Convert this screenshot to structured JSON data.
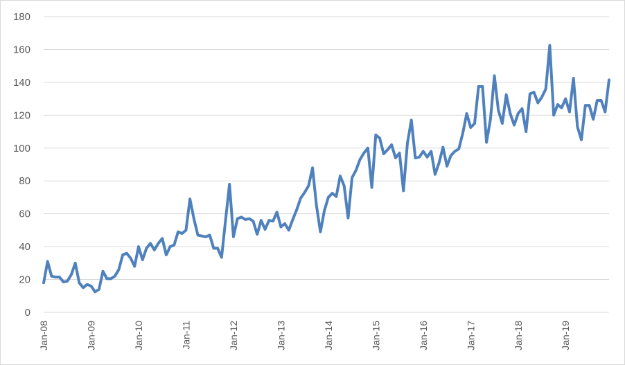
{
  "chart_data": {
    "type": "line",
    "title": "",
    "xlabel": "",
    "ylabel": "",
    "ylim": [
      0,
      180
    ],
    "y_ticks": [
      0,
      20,
      40,
      60,
      80,
      100,
      120,
      140,
      160,
      180
    ],
    "x_tick_labels": [
      "Jan-08",
      "Jan-09",
      "Jan-10",
      "Jan-11",
      "Jan-12",
      "Jan-13",
      "Jan-14",
      "Jan-15",
      "Jan-16",
      "Jan-17",
      "Jan-18",
      "Jan-19"
    ],
    "grid": "horizontal",
    "legend": "none",
    "line_color": "#4F81BD",
    "x": [
      "2008-01",
      "2008-02",
      "2008-03",
      "2008-04",
      "2008-05",
      "2008-06",
      "2008-07",
      "2008-08",
      "2008-09",
      "2008-10",
      "2008-11",
      "2008-12",
      "2009-01",
      "2009-02",
      "2009-03",
      "2009-04",
      "2009-05",
      "2009-06",
      "2009-07",
      "2009-08",
      "2009-09",
      "2009-10",
      "2009-11",
      "2009-12",
      "2010-01",
      "2010-02",
      "2010-03",
      "2010-04",
      "2010-05",
      "2010-06",
      "2010-07",
      "2010-08",
      "2010-09",
      "2010-10",
      "2010-11",
      "2010-12",
      "2011-01",
      "2011-02",
      "2011-03",
      "2011-04",
      "2011-05",
      "2011-06",
      "2011-07",
      "2011-08",
      "2011-09",
      "2011-10",
      "2011-11",
      "2011-12",
      "2012-01",
      "2012-02",
      "2012-03",
      "2012-04",
      "2012-05",
      "2012-06",
      "2012-07",
      "2012-08",
      "2012-09",
      "2012-10",
      "2012-11",
      "2012-12",
      "2013-01",
      "2013-02",
      "2013-03",
      "2013-04",
      "2013-05",
      "2013-06",
      "2013-07",
      "2013-08",
      "2013-09",
      "2013-10",
      "2013-11",
      "2013-12",
      "2014-01",
      "2014-02",
      "2014-03",
      "2014-04",
      "2014-05",
      "2014-06",
      "2014-07",
      "2014-08",
      "2014-09",
      "2014-10",
      "2014-11",
      "2014-12",
      "2015-01",
      "2015-02",
      "2015-03",
      "2015-04",
      "2015-05",
      "2015-06",
      "2015-07",
      "2015-08",
      "2015-09",
      "2015-10",
      "2015-11",
      "2015-12",
      "2016-01",
      "2016-02",
      "2016-03",
      "2016-04",
      "2016-05",
      "2016-06",
      "2016-07",
      "2016-08",
      "2016-09",
      "2016-10",
      "2016-11",
      "2016-12",
      "2017-01",
      "2017-02",
      "2017-03",
      "2017-04",
      "2017-05",
      "2017-06",
      "2017-07",
      "2017-08",
      "2017-09",
      "2017-10",
      "2017-11",
      "2017-12",
      "2018-01",
      "2018-02",
      "2018-03",
      "2018-04",
      "2018-05",
      "2018-06",
      "2018-07",
      "2018-08",
      "2018-09",
      "2018-10",
      "2018-11",
      "2018-12",
      "2019-01",
      "2019-02",
      "2019-03",
      "2019-04",
      "2019-05",
      "2019-06",
      "2019-07",
      "2019-08",
      "2019-09",
      "2019-10",
      "2019-11",
      "2019-12"
    ],
    "series": [
      {
        "values": [
          18,
          31,
          22,
          21.5,
          21.5,
          18.5,
          19,
          23,
          30,
          18,
          15,
          17,
          16,
          12.5,
          14,
          25,
          20.5,
          20.5,
          22,
          26,
          35,
          36,
          33,
          28,
          40,
          32,
          39,
          42,
          38,
          42,
          45,
          35,
          40,
          41,
          49,
          48,
          50,
          69,
          57,
          47,
          46.5,
          46,
          47,
          39,
          39,
          33.5,
          56,
          78,
          46,
          57,
          58,
          56.5,
          57,
          55.5,
          47.5,
          56,
          50.5,
          56,
          55.5,
          61,
          52,
          54,
          50,
          56.5,
          62.5,
          69.5,
          73,
          77,
          88,
          65,
          49,
          62,
          70,
          72.5,
          70.5,
          83,
          77,
          57.5,
          82,
          86.5,
          93,
          97,
          100,
          76,
          108,
          106,
          96.5,
          99,
          102,
          94,
          97,
          74,
          103,
          117,
          94,
          94.5,
          98,
          94.5,
          98,
          84,
          91,
          100.5,
          89,
          95.5,
          98,
          99.5,
          109,
          121,
          112.5,
          115,
          137.5,
          137.5,
          103.5,
          117.5,
          144,
          123,
          115,
          132.5,
          121,
          114,
          121,
          124,
          110,
          133,
          134,
          127.5,
          131,
          136,
          162.5,
          120,
          126.5,
          124.5,
          130,
          122,
          142.5,
          113,
          105,
          126,
          126,
          117.5,
          129,
          129,
          122,
          141.5
        ]
      }
    ]
  }
}
